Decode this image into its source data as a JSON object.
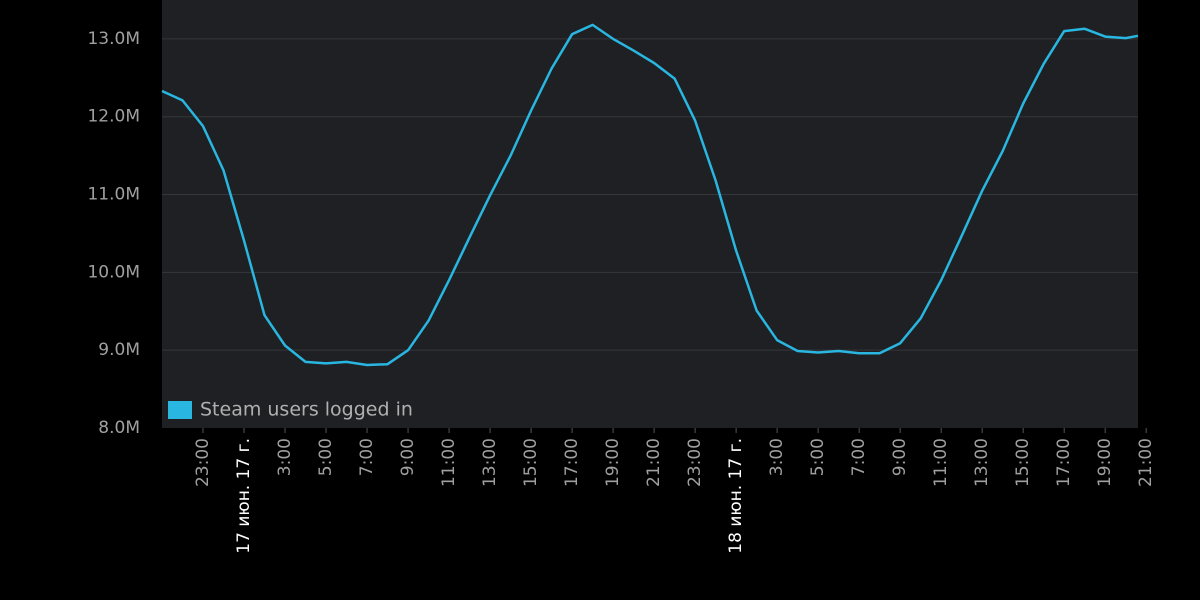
{
  "chart_data": {
    "type": "line",
    "x": [
      21,
      22,
      23,
      24,
      25,
      26,
      27,
      28,
      29,
      30,
      31,
      32,
      33,
      34,
      35,
      36,
      37,
      38,
      39,
      40,
      41,
      42,
      43,
      44,
      45,
      46,
      47,
      48,
      49,
      50,
      51,
      52,
      53,
      54,
      55,
      56,
      57,
      58,
      59,
      60,
      61,
      62,
      63,
      64,
      65,
      66,
      67,
      68,
      68.6
    ],
    "series": [
      {
        "name": "Steam users logged in",
        "color": "#29b6e0",
        "values": [
          12330000,
          12210000,
          11880000,
          11310000,
          10410000,
          9450000,
          9060000,
          8850000,
          8830000,
          8850000,
          8810000,
          8820000,
          9000000,
          9380000,
          9900000,
          10450000,
          10990000,
          11500000,
          12080000,
          12620000,
          13060000,
          13180000,
          13000000,
          12850000,
          12690000,
          12490000,
          11950000,
          11180000,
          10280000,
          9510000,
          9130000,
          8990000,
          8970000,
          8990000,
          8960000,
          8960000,
          9090000,
          9410000,
          9900000,
          10470000,
          11050000,
          11560000,
          12170000,
          12680000,
          13100000,
          13130000,
          13030000,
          13010000,
          13040000
        ]
      }
    ],
    "xlim": [
      21,
      68.6
    ],
    "xticks": [
      {
        "value": 23,
        "label": "23:00"
      },
      {
        "value": 25,
        "label": "17 июн. 17 г."
      },
      {
        "value": 27,
        "label": "3:00"
      },
      {
        "value": 29,
        "label": "5:00"
      },
      {
        "value": 31,
        "label": "7:00"
      },
      {
        "value": 33,
        "label": "9:00"
      },
      {
        "value": 35,
        "label": "11:00"
      },
      {
        "value": 37,
        "label": "13:00"
      },
      {
        "value": 39,
        "label": "15:00"
      },
      {
        "value": 41,
        "label": "17:00"
      },
      {
        "value": 43,
        "label": "19:00"
      },
      {
        "value": 45,
        "label": "21:00"
      },
      {
        "value": 47,
        "label": "23:00"
      },
      {
        "value": 49,
        "label": "18 июн. 17 г."
      },
      {
        "value": 51,
        "label": "3:00"
      },
      {
        "value": 53,
        "label": "5:00"
      },
      {
        "value": 55,
        "label": "7:00"
      },
      {
        "value": 57,
        "label": "9:00"
      },
      {
        "value": 59,
        "label": "11:00"
      },
      {
        "value": 61,
        "label": "13:00"
      },
      {
        "value": 63,
        "label": "15:00"
      },
      {
        "value": 65,
        "label": "17:00"
      },
      {
        "value": 67,
        "label": "19:00"
      },
      {
        "value": 69,
        "label": "21:00"
      }
    ],
    "ylim": [
      8000000,
      13500000
    ],
    "yticks": [
      {
        "value": 8000000,
        "label": "8.0M"
      },
      {
        "value": 9000000,
        "label": "9.0M"
      },
      {
        "value": 10000000,
        "label": "10.0M"
      },
      {
        "value": 11000000,
        "label": "11.0M"
      },
      {
        "value": 12000000,
        "label": "12.0M"
      },
      {
        "value": 13000000,
        "label": "13.0M"
      }
    ],
    "grid": true,
    "legend": "bottom-left"
  }
}
